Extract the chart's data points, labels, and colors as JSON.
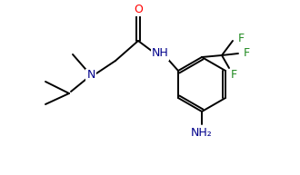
{
  "bg_color": "#ffffff",
  "bond_color": "#000000",
  "atom_colors": {
    "N": "#00008b",
    "O": "#ff0000",
    "F": "#228b22",
    "C": "#000000"
  },
  "figsize": [
    3.3,
    1.93
  ],
  "dpi": 100
}
